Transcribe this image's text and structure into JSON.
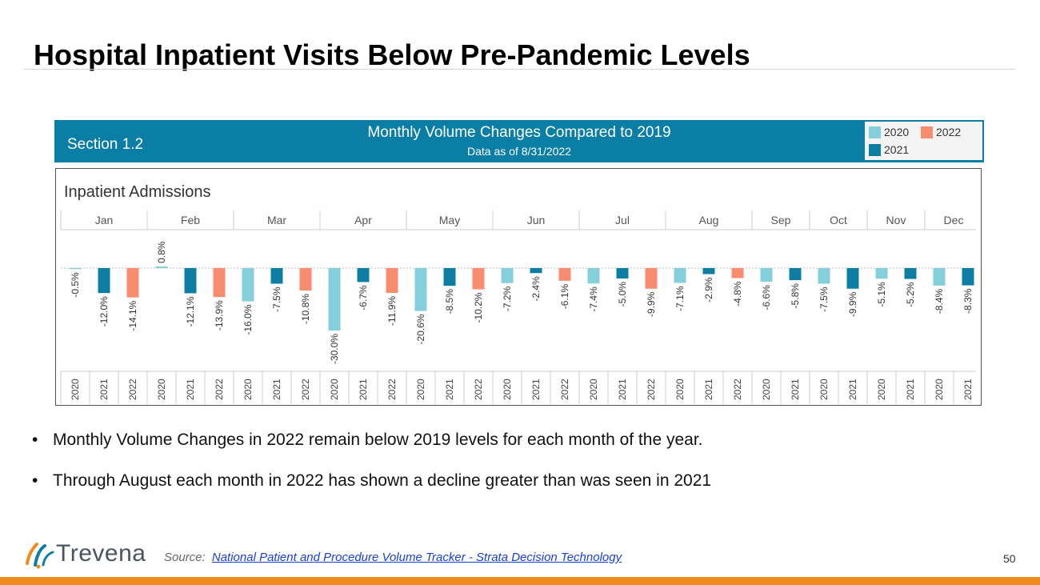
{
  "slide": {
    "title": "Hospital Inpatient Visits Below Pre-Pandemic Levels",
    "bullets": [
      "Monthly Volume Changes in 2022 remain below 2019 levels for each month of the year.",
      "Through August each month in 2022 has shown a decline greater than was seen in 2021"
    ],
    "bullet_symbol": "•",
    "source_label": "Source:",
    "source_link_text": "National Patient and Procedure Volume Tracker - Strata Decision Technology",
    "page_number": "50",
    "logo_text": "Trevena"
  },
  "banner": {
    "section": "Section 1.2",
    "title": "Monthly Volume Changes Compared to 2019",
    "subtitle": "Data as of 8/31/2022"
  },
  "colors": {
    "2020": "#85cfdc",
    "2021": "#0e7da3",
    "2022": "#f88c6e",
    "banner": "#0b7ea6",
    "accent": "#f08a1d"
  },
  "chart_data": {
    "type": "bar",
    "title": "Inpatient Admissions",
    "legend": [
      "2020",
      "2022",
      "2021"
    ],
    "legend_position": "top-right",
    "months": [
      {
        "name": "Jan",
        "bars": [
          {
            "year": "2020",
            "value": -0.5,
            "label": "-0.5%"
          },
          {
            "year": "2021",
            "value": -12.0,
            "label": "-12.0%"
          },
          {
            "year": "2022",
            "value": -14.1,
            "label": "-14.1%"
          }
        ]
      },
      {
        "name": "Feb",
        "bars": [
          {
            "year": "2020",
            "value": 0.8,
            "label": "0.8%"
          },
          {
            "year": "2021",
            "value": -12.1,
            "label": "-12.1%"
          },
          {
            "year": "2022",
            "value": -13.9,
            "label": "-13.9%"
          }
        ]
      },
      {
        "name": "Mar",
        "bars": [
          {
            "year": "2020",
            "value": -16.0,
            "label": "-16.0%"
          },
          {
            "year": "2021",
            "value": -7.5,
            "label": "-7.5%"
          },
          {
            "year": "2022",
            "value": -10.8,
            "label": "-10.8%"
          }
        ]
      },
      {
        "name": "Apr",
        "bars": [
          {
            "year": "2020",
            "value": -30.0,
            "label": "-30.0%"
          },
          {
            "year": "2021",
            "value": -6.7,
            "label": "-6.7%"
          },
          {
            "year": "2022",
            "value": -11.9,
            "label": "-11.9%"
          }
        ]
      },
      {
        "name": "May",
        "bars": [
          {
            "year": "2020",
            "value": -20.6,
            "label": "-20.6%"
          },
          {
            "year": "2021",
            "value": -8.5,
            "label": "-8.5%"
          },
          {
            "year": "2022",
            "value": -10.2,
            "label": "-10.2%"
          }
        ]
      },
      {
        "name": "Jun",
        "bars": [
          {
            "year": "2020",
            "value": -7.2,
            "label": "-7.2%"
          },
          {
            "year": "2021",
            "value": -2.4,
            "label": "-2.4%"
          },
          {
            "year": "2022",
            "value": -6.1,
            "label": "-6.1%"
          }
        ]
      },
      {
        "name": "Jul",
        "bars": [
          {
            "year": "2020",
            "value": -7.4,
            "label": "-7.4%"
          },
          {
            "year": "2021",
            "value": -5.0,
            "label": "-5.0%"
          },
          {
            "year": "2022",
            "value": -9.9,
            "label": "-9.9%"
          }
        ]
      },
      {
        "name": "Aug",
        "bars": [
          {
            "year": "2020",
            "value": -7.1,
            "label": "-7.1%"
          },
          {
            "year": "2021",
            "value": -2.9,
            "label": "-2.9%"
          },
          {
            "year": "2022",
            "value": -4.8,
            "label": "-4.8%"
          }
        ]
      },
      {
        "name": "Sep",
        "bars": [
          {
            "year": "2020",
            "value": -6.6,
            "label": "-6.6%"
          },
          {
            "year": "2021",
            "value": -5.8,
            "label": "-5.8%"
          }
        ]
      },
      {
        "name": "Oct",
        "bars": [
          {
            "year": "2020",
            "value": -7.5,
            "label": "-7.5%"
          },
          {
            "year": "2021",
            "value": -9.9,
            "label": "-9.9%"
          }
        ]
      },
      {
        "name": "Nov",
        "bars": [
          {
            "year": "2020",
            "value": -5.1,
            "label": "-5.1%"
          },
          {
            "year": "2021",
            "value": -5.2,
            "label": "-5.2%"
          }
        ]
      },
      {
        "name": "Dec",
        "bars": [
          {
            "year": "2020",
            "value": -8.4,
            "label": "-8.4%"
          },
          {
            "year": "2021",
            "value": -8.3,
            "label": "-8.3%"
          }
        ]
      }
    ],
    "ylim": [
      -30.0,
      0.8
    ],
    "zero_line": "dashed"
  }
}
